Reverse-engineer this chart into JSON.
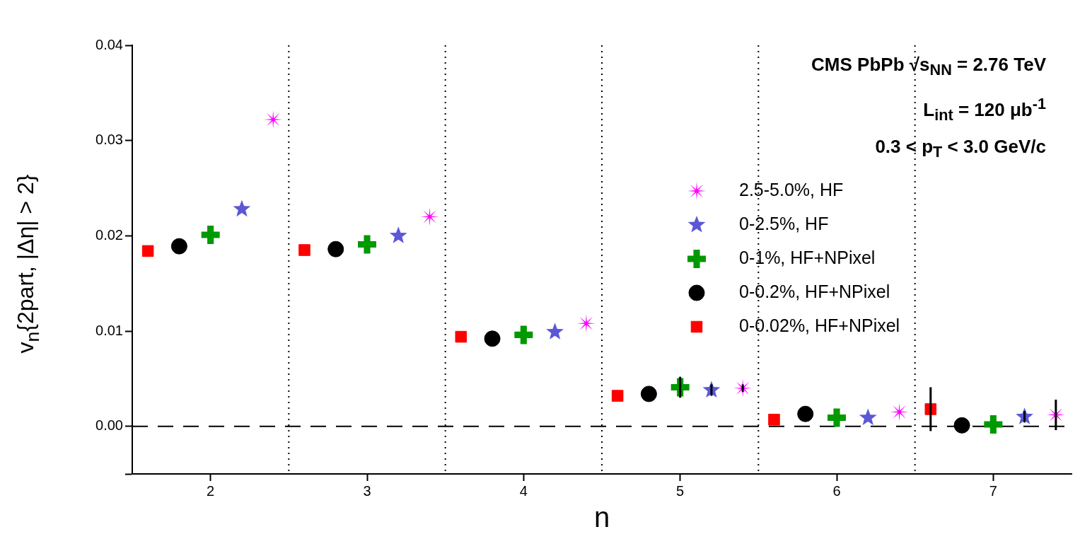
{
  "chart_data": {
    "type": "scatter",
    "xlabel": "n",
    "ylabel": "v$_{n}${2part, |Δη| > 2}",
    "annotations": [
      "CMS PbPb √s$_{NN}$ = 2.76 TeV",
      "L$_{int}$ = 120 μb$^{-1}$",
      "0.3 < p$_{T}$ < 3.0 GeV/c"
    ],
    "xlim": [
      1.5,
      7.5
    ],
    "xticks": [
      2,
      3,
      4,
      5,
      6,
      7
    ],
    "ylim": [
      -0.005,
      0.04
    ],
    "yticks": [
      {
        "value": -0.005,
        "label": null
      },
      {
        "value": 0,
        "label": "0.00"
      },
      0.01,
      0.02,
      0.03,
      0.04
    ],
    "grid": false,
    "legend": "top right",
    "series": [
      {
        "name": "2.5-5.0%, HF",
        "color": "#ff00ff",
        "marker": "star",
        "x": [
          2.4,
          3.4,
          4.4,
          5.4,
          6.4,
          7.4
        ],
        "values": [
          0.0322,
          0.022,
          0.0108,
          0.004,
          0.0015,
          0.0012
        ],
        "errors": [
          null,
          null,
          null,
          0.0004,
          null,
          0.0016
        ]
      },
      {
        "name": "0-2.5%, HF",
        "color": "#5b57d6",
        "marker": "star",
        "x": [
          2.2,
          3.2,
          4.2,
          5.2,
          6.2,
          7.2
        ],
        "values": [
          0.0228,
          0.02,
          0.0099,
          0.0038,
          0.0009,
          0.001
        ],
        "errors": [
          null,
          null,
          null,
          0.0006,
          null,
          0.0006
        ]
      },
      {
        "name": "0-1%, HF+NPixel",
        "color": "#009900",
        "marker": "cross",
        "x": [
          2,
          3,
          4,
          5,
          6,
          7
        ],
        "values": [
          0.0201,
          0.0191,
          0.0096,
          0.0041,
          0.0009,
          0.0002
        ],
        "errors": [
          null,
          null,
          null,
          0.0011,
          null,
          null
        ]
      },
      {
        "name": "0-0.2%, HF+NPixel",
        "color": "#000000",
        "marker": "circle",
        "x": [
          1.8,
          2.8,
          3.8,
          4.8,
          5.8,
          6.8
        ],
        "values": [
          0.0189,
          0.0186,
          0.0092,
          0.0034,
          0.0013,
          0.0001
        ]
      },
      {
        "name": "0-0.02%, HF+NPixel",
        "color": "#ff0000",
        "marker": "square",
        "x": [
          1.6,
          2.6,
          3.6,
          4.6,
          5.6,
          6.6
        ],
        "values": [
          0.0184,
          0.0185,
          0.0094,
          0.0032,
          0.0007,
          0.0018
        ],
        "errors": [
          null,
          null,
          null,
          null,
          null,
          0.0023
        ]
      }
    ],
    "ref_lines": [
      {
        "axis": "x",
        "value": 2.5,
        "line_style": "dotted"
      },
      {
        "axis": "x",
        "value": 3.5,
        "line_style": "dotted"
      },
      {
        "axis": "x",
        "value": 4.5,
        "line_style": "dotted"
      },
      {
        "axis": "x",
        "value": 5.5,
        "line_style": "dotted"
      },
      {
        "axis": "x",
        "value": 6.5,
        "line_style": "dotted"
      },
      {
        "axis": "y",
        "value": 0,
        "line_style": "dashed"
      }
    ]
  }
}
